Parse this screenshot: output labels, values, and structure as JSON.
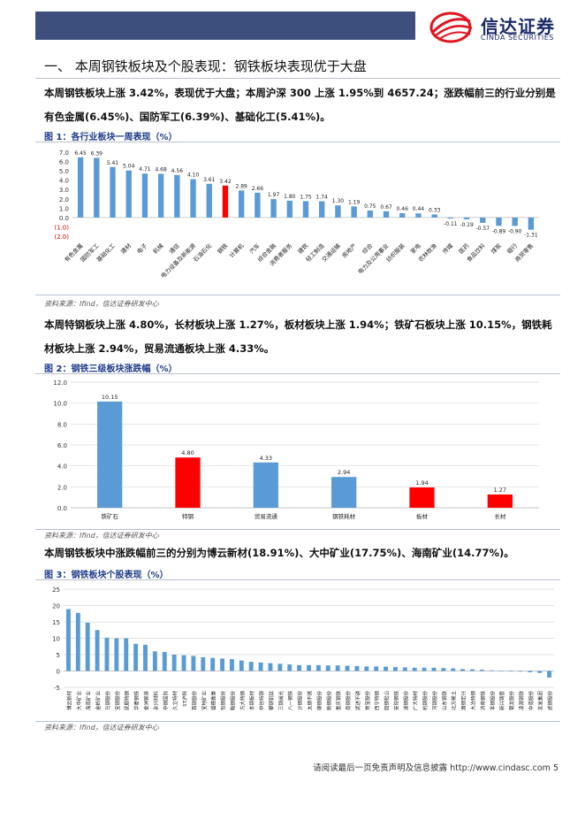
{
  "header": {
    "logo_cn": "信达证券",
    "logo_en": "CINDA SECURITIES"
  },
  "section": {
    "title": "一、  本周钢铁板块及个股表现：钢铁板块表现优于大盘"
  },
  "paragraphs": {
    "p1": "本周钢铁板块上涨 3.42%，表现优于大盘；本周沪深 300 上涨 1.95%到 4657.24；涨跌幅前三的行业分别是有色金属(6.45%)、国防军工(6.39%)、基础化工(5.41%)。",
    "p2": "本周特钢板块上涨 4.80%，长材板块上涨 1.27%，板材板块上涨 1.94%；铁矿石板块上涨 10.15%，钢铁耗材板块上涨 2.94%，贸易流通板块上涨 4.33%。",
    "p3": "本周钢铁板块中涨跌幅前三的分别为博云新材(18.91%)、大中矿业(17.75%)、海南矿业(14.77%)。"
  },
  "figures": {
    "fig1_title": "图 1：各行业板块一周表现（%）",
    "fig2_title": "图 2：钢铁三级板块涨跌幅（%）",
    "fig3_title": "图 3：钢铁板块个股表现（%）",
    "source": "资料来源：Ifind，信达证券研发中心"
  },
  "footer": {
    "text": "请阅读最后一页免责声明及信息披露 http://www.cindasc.com 5"
  },
  "colors": {
    "blue": "#5b9bd5",
    "red": "#ff0000",
    "navy": "#3d4f7c"
  },
  "chart_data": [
    {
      "type": "bar",
      "title": "各行业板块一周表现（%）",
      "categories": [
        "有色金属",
        "国防军工",
        "基础化工",
        "建材",
        "电子",
        "机械",
        "通信",
        "电力设备及新能源",
        "石油石化",
        "钢铁",
        "计算机",
        "汽车",
        "综合金融",
        "消费者服务",
        "建筑",
        "轻工制造",
        "交通运输",
        "房地产",
        "综合",
        "电力及公用事业",
        "纺织服装",
        "家电",
        "农林牧渔",
        "传媒",
        "医药",
        "食品饮料",
        "煤炭",
        "银行",
        "商贸零售"
      ],
      "values": [
        6.45,
        6.39,
        5.41,
        5.04,
        4.71,
        4.68,
        4.56,
        4.1,
        3.61,
        3.42,
        2.89,
        2.66,
        1.97,
        1.8,
        1.75,
        1.74,
        1.3,
        1.19,
        0.75,
        0.67,
        0.46,
        0.44,
        0.33,
        -0.11,
        -0.19,
        -0.57,
        -0.89,
        -0.9,
        -1.31
      ],
      "highlight": "钢铁",
      "yticks": [
        "7.0",
        "6.0",
        "5.0",
        "4.0",
        "3.0",
        "2.0",
        "1.0",
        "0.0",
        "(1.0)",
        "(2.0)"
      ],
      "ylim": [
        -2,
        7
      ]
    },
    {
      "type": "bar",
      "title": "钢铁三级板块涨跌幅（%）",
      "categories": [
        "铁矿石",
        "特钢",
        "贸易流通",
        "钢铁耗材",
        "板材",
        "长材"
      ],
      "values": [
        10.15,
        4.8,
        4.33,
        2.94,
        1.94,
        1.27
      ],
      "colors": [
        "#5b9bd5",
        "#ff0000",
        "#5b9bd5",
        "#5b9bd5",
        "#ff0000",
        "#ff0000"
      ],
      "yticks": [
        "12.0",
        "10.0",
        "8.0",
        "6.0",
        "4.0",
        "2.0",
        "0.0"
      ],
      "ylim": [
        0,
        12
      ]
    },
    {
      "type": "bar",
      "title": "钢铁板块个股表现（%）",
      "categories": [
        "博云新材",
        "大中矿业",
        "海南矿业",
        "金岭矿业",
        "马钢股份",
        "宝钢股份",
        "抚顺特钢",
        "华菱钢铁",
        "金洲管道",
        "永兴材料",
        "中钢国际",
        "久立特材",
        "ST沪科",
        "首钢股份",
        "宝地矿业",
        "盛德鑫泰",
        "包钢股份",
        "鞍钢股份",
        "方大特钢",
        "本钢板材",
        "中信特钢",
        "攀钢钒钛",
        "三钢闽光",
        "八一钢铁",
        "沙钢股份",
        "太钢不锈",
        "柳钢股份",
        "新钢股份",
        "重庆钢铁",
        "南钢股份",
        "武进不锈",
        "常宝股份",
        "西宁特钢",
        "韶钢松山",
        "安阳钢铁",
        "凌钢股份",
        "广大特材",
        "杭钢股份",
        "河钢股份",
        "山东钢铁",
        "北方稀土",
        "酒钢宏兴",
        "大冶特钢",
        "济南钢铁",
        "本钢股份",
        "新兴铸管",
        "银龙股份",
        "凌源钢铁",
        "中南股份",
        "友发集团",
        "武钢股份"
      ],
      "values": [
        18.91,
        17.75,
        14.77,
        12.5,
        10.2,
        10.0,
        10.0,
        8.3,
        8.0,
        6.0,
        5.8,
        5.0,
        4.8,
        4.6,
        4.2,
        4.0,
        3.8,
        3.6,
        3.2,
        2.8,
        2.6,
        2.4,
        2.2,
        2.0,
        1.8,
        1.8,
        1.8,
        1.7,
        1.7,
        1.6,
        1.5,
        1.4,
        1.4,
        1.3,
        1.2,
        1.1,
        1.0,
        1.0,
        1.0,
        0.9,
        0.8,
        0.6,
        0.5,
        0.4,
        0.2,
        0.1,
        0.0,
        -0.2,
        -0.4,
        -0.6,
        -2.0
      ],
      "yticks": [
        "25",
        "20",
        "15",
        "10",
        "5",
        "0",
        "-5"
      ],
      "ylim": [
        -5,
        25
      ]
    }
  ]
}
